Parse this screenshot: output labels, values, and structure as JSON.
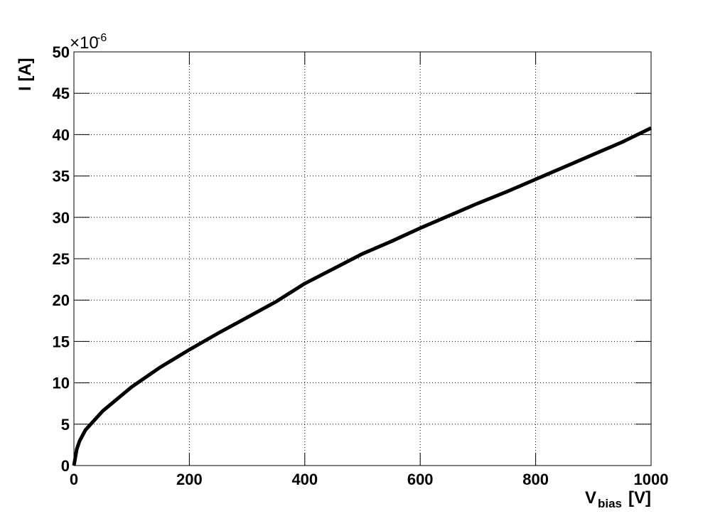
{
  "chart_data": {
    "type": "line",
    "ylabel": "I [A]",
    "y_multiplier": {
      "base": "×10",
      "exponent": "-6"
    },
    "xlabel": {
      "main": "V",
      "sub": "bias",
      "unit": "[V]"
    },
    "x": [
      0,
      5,
      10,
      20,
      50,
      100,
      150,
      200,
      250,
      300,
      350,
      400,
      450,
      500,
      550,
      600,
      650,
      700,
      750,
      800,
      850,
      900,
      950,
      1000
    ],
    "series": [
      {
        "name": "I",
        "color": "#000000",
        "values": [
          0,
          2,
          3,
          4.3,
          6.6,
          9.5,
          11.9,
          14.0,
          16.0,
          17.9,
          19.8,
          22.0,
          23.8,
          25.6,
          27.1,
          28.7,
          30.2,
          31.7,
          33.1,
          34.6,
          36.1,
          37.6,
          39.1,
          40.8
        ]
      }
    ],
    "xlim": [
      0,
      1000
    ],
    "ylim": [
      0,
      50
    ],
    "xticks": [
      0,
      200,
      400,
      600,
      800,
      1000
    ],
    "yticks": [
      0,
      5,
      10,
      15,
      20,
      25,
      30,
      35,
      40,
      45,
      50
    ],
    "grid": true
  }
}
